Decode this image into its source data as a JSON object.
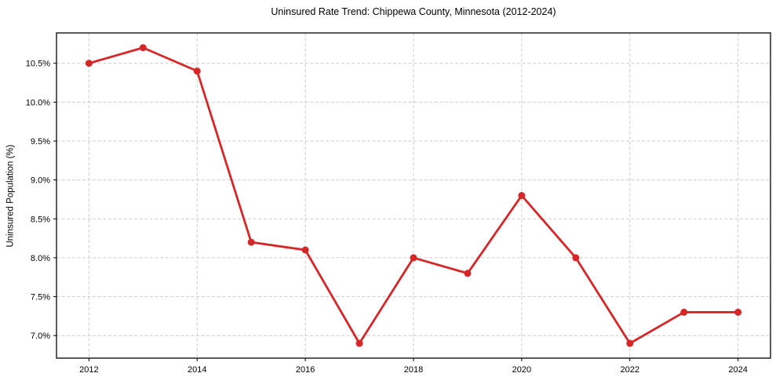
{
  "chart": {
    "title": "Uninsured Rate Trend: Chippewa County, Minnesota (2012-2024)",
    "ylabel": "Uninsured Population (%)"
  },
  "chart_data": {
    "type": "line",
    "title": "Uninsured Rate Trend: Chippewa County, Minnesota (2012-2024)",
    "xlabel": "",
    "ylabel": "Uninsured Population (%)",
    "x": [
      2012,
      2013,
      2014,
      2015,
      2016,
      2017,
      2018,
      2019,
      2020,
      2021,
      2022,
      2023,
      2024
    ],
    "values": [
      10.5,
      10.7,
      10.4,
      8.2,
      8.1,
      6.9,
      8.0,
      7.8,
      8.8,
      8.0,
      6.9,
      7.3,
      7.3
    ],
    "xticks": [
      2012,
      2014,
      2016,
      2018,
      2020,
      2022,
      2024
    ],
    "yticks": [
      7.0,
      7.5,
      8.0,
      8.5,
      9.0,
      9.5,
      10.0,
      10.5
    ],
    "xlim": [
      2011.4,
      2024.6
    ],
    "ylim": [
      6.71,
      10.89
    ],
    "grid": true,
    "legend": "none",
    "line_color": "#d62728",
    "marker_color": "#d62728",
    "grid_color": "#cccccc",
    "axis_color": "#000000",
    "background_color": "#ffffff"
  }
}
